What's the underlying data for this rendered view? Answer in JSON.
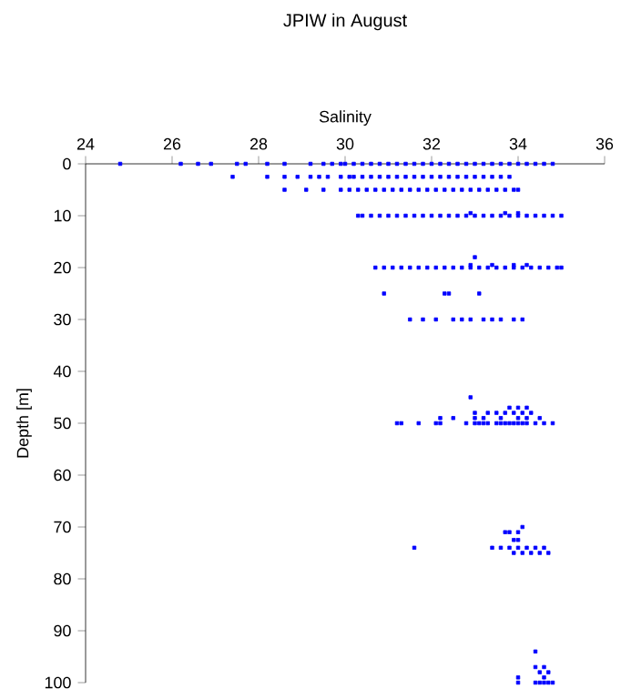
{
  "chart_data": {
    "type": "scatter",
    "title": "JPIW in August",
    "xlabel": "Salinity",
    "ylabel": "Depth [m]",
    "xlim": [
      24,
      36
    ],
    "xticks": [
      24,
      26,
      28,
      30,
      32,
      34,
      36
    ],
    "ylim": [
      100,
      0
    ],
    "yticks": [
      0,
      10,
      20,
      30,
      40,
      50,
      60,
      70,
      80,
      90,
      100
    ],
    "grid": false,
    "marker": "square",
    "series": [
      {
        "color": "#0000ff",
        "x": [
          24.8,
          26.2,
          26.6,
          26.9,
          27.5,
          27.7,
          28.2,
          28.6,
          29.2,
          29.5,
          29.7,
          29.9,
          30.0,
          30.2,
          30.4,
          30.6,
          30.8,
          31.0,
          31.2,
          31.4,
          31.6,
          31.8,
          32.0,
          32.2,
          32.4,
          32.6,
          32.8,
          33.0,
          33.2,
          33.4,
          33.6,
          33.8,
          34.0,
          34.2,
          34.4,
          34.6,
          34.8,
          27.4,
          28.2,
          28.6,
          28.9,
          29.2,
          29.4,
          29.6,
          29.9,
          30.1,
          30.2,
          30.4,
          30.6,
          30.8,
          31.0,
          31.2,
          31.4,
          31.6,
          31.8,
          32.0,
          32.2,
          32.4,
          32.6,
          32.8,
          33.0,
          33.2,
          33.4,
          33.6,
          33.8,
          28.6,
          29.1,
          29.5,
          29.9,
          30.1,
          30.3,
          30.5,
          30.7,
          30.9,
          31.1,
          31.3,
          31.5,
          31.7,
          31.9,
          32.1,
          32.3,
          32.5,
          32.7,
          32.9,
          33.1,
          33.3,
          33.5,
          33.7,
          33.9,
          34.0,
          30.3,
          30.4,
          30.6,
          30.8,
          31.0,
          31.2,
          31.4,
          31.6,
          31.8,
          32.0,
          32.2,
          32.4,
          32.6,
          32.8,
          33.0,
          33.2,
          33.4,
          33.6,
          33.8,
          34.0,
          34.2,
          34.4,
          34.6,
          34.8,
          35.0,
          32.9,
          33.7,
          34.0,
          33.0,
          32.9,
          33.4,
          33.9,
          34.2,
          30.7,
          30.9,
          31.1,
          31.3,
          31.5,
          31.7,
          31.9,
          32.1,
          32.3,
          32.5,
          32.7,
          32.9,
          33.1,
          33.3,
          33.5,
          33.7,
          33.9,
          34.1,
          34.3,
          34.5,
          34.7,
          34.9,
          35.0,
          30.9,
          32.3,
          32.4,
          33.1,
          31.5,
          31.8,
          32.1,
          32.5,
          32.7,
          32.9,
          33.2,
          33.4,
          33.6,
          33.9,
          34.1,
          32.9,
          31.2,
          31.3,
          31.7,
          32.1,
          32.2,
          32.8,
          33.0,
          33.1,
          33.2,
          33.3,
          33.5,
          33.6,
          33.7,
          33.8,
          33.9,
          34.0,
          34.1,
          34.2,
          34.4,
          34.6,
          34.8,
          32.2,
          32.5,
          33.0,
          33.2,
          33.6,
          34.0,
          34.2,
          34.5,
          33.0,
          33.3,
          33.5,
          33.7,
          33.9,
          34.1,
          34.3,
          33.8,
          34.0,
          34.2,
          34.1,
          33.7,
          33.8,
          34.0,
          33.9,
          34.0,
          31.6,
          33.4,
          33.6,
          33.8,
          34.0,
          34.2,
          34.4,
          34.6,
          33.9,
          34.1,
          34.3,
          34.5,
          34.7,
          34.4,
          34.4,
          34.6,
          34.5,
          34.7,
          34.0,
          34.6,
          34.0,
          34.4,
          34.5,
          34.6,
          34.7,
          34.8
        ],
        "values": [
          0,
          0,
          0,
          0,
          0,
          0,
          0,
          0,
          0,
          0,
          0,
          0,
          0,
          0,
          0,
          0,
          0,
          0,
          0,
          0,
          0,
          0,
          0,
          0,
          0,
          0,
          0,
          0,
          0,
          0,
          0,
          0,
          0,
          0,
          0,
          0,
          0,
          2.5,
          2.5,
          2.5,
          2.5,
          2.5,
          2.5,
          2.5,
          2.5,
          2.5,
          2.5,
          2.5,
          2.5,
          2.5,
          2.5,
          2.5,
          2.5,
          2.5,
          2.5,
          2.5,
          2.5,
          2.5,
          2.5,
          2.5,
          2.5,
          2.5,
          2.5,
          2.5,
          2.5,
          5,
          5,
          5,
          5,
          5,
          5,
          5,
          5,
          5,
          5,
          5,
          5,
          5,
          5,
          5,
          5,
          5,
          5,
          5,
          5,
          5,
          5,
          5,
          5,
          5,
          10,
          10,
          10,
          10,
          10,
          10,
          10,
          10,
          10,
          10,
          10,
          10,
          10,
          10,
          10,
          10,
          10,
          10,
          10,
          10,
          10,
          10,
          10,
          10,
          10,
          9.5,
          9.5,
          9.5,
          18,
          19.5,
          19.5,
          19.5,
          19.5,
          20,
          20,
          20,
          20,
          20,
          20,
          20,
          20,
          20,
          20,
          20,
          20,
          20,
          20,
          20,
          20,
          20,
          20,
          20,
          20,
          20,
          20,
          20,
          25,
          25,
          25,
          25,
          30,
          30,
          30,
          30,
          30,
          30,
          30,
          30,
          30,
          30,
          30,
          45,
          50,
          50,
          50,
          50,
          50,
          50,
          50,
          50,
          50,
          50,
          50,
          50,
          50,
          50,
          50,
          50,
          50,
          50,
          50,
          50,
          50,
          49,
          49,
          49,
          49,
          49,
          49,
          49,
          49,
          48,
          48,
          48,
          48,
          48,
          48,
          48,
          47,
          47,
          47,
          70,
          71,
          71,
          71,
          72.5,
          72.5,
          74,
          74,
          74,
          74,
          74,
          74,
          74,
          74,
          75,
          75,
          75,
          75,
          75,
          94,
          97,
          97,
          98,
          98,
          99,
          99,
          100,
          100,
          100,
          100,
          100,
          100
        ]
      }
    ]
  }
}
